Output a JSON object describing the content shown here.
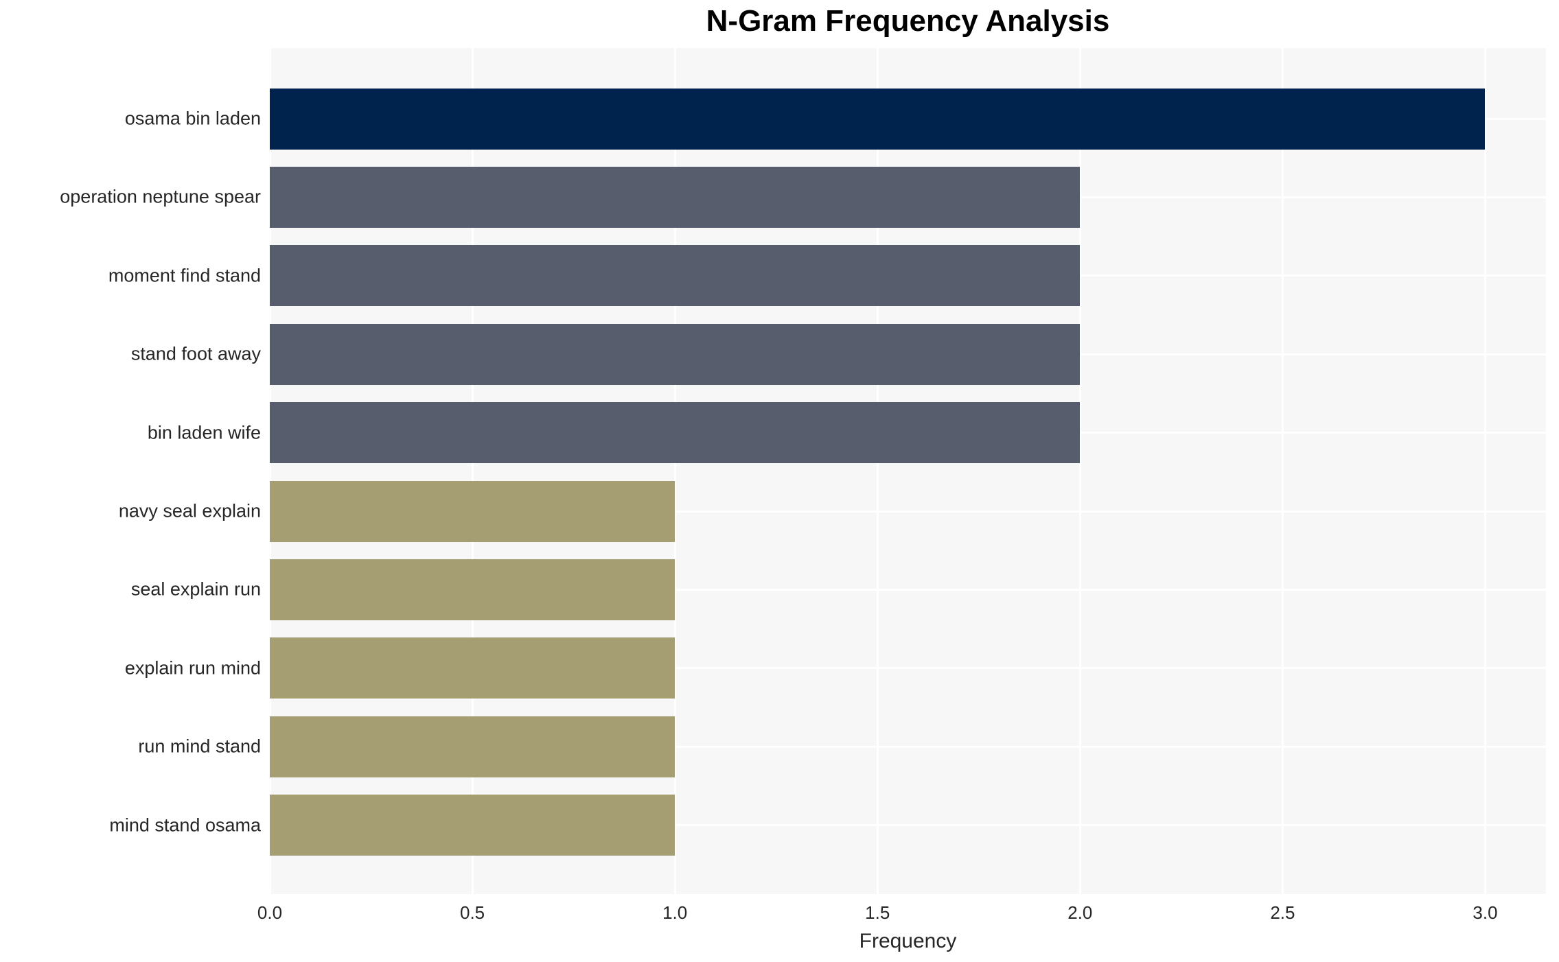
{
  "chart_data": {
    "type": "bar",
    "orientation": "horizontal",
    "title": "N-Gram Frequency Analysis",
    "xlabel": "Frequency",
    "ylabel": "",
    "categories": [
      "osama bin laden",
      "operation neptune spear",
      "moment find stand",
      "stand foot away",
      "bin laden wife",
      "navy seal explain",
      "seal explain run",
      "explain run mind",
      "run mind stand",
      "mind stand osama"
    ],
    "values": [
      3,
      2,
      2,
      2,
      2,
      1,
      1,
      1,
      1,
      1
    ],
    "bar_colors": [
      "#00234E",
      "#575D6C",
      "#575D6C",
      "#575D6C",
      "#575D6C",
      "#A49E72",
      "#A49E72",
      "#A49E72",
      "#A49E72",
      "#A49E72"
    ],
    "xlim": [
      0,
      3.15
    ],
    "xticks": [
      "0.0",
      "0.5",
      "1.0",
      "1.5",
      "2.0",
      "2.5",
      "3.0"
    ],
    "xtick_values": [
      0,
      0.5,
      1,
      1.5,
      2,
      2.5,
      3
    ],
    "grid": true,
    "legend": false
  },
  "style": {
    "figure_bg": "#FFFFFF",
    "plot_bg": "#F7F7F8",
    "grid_color": "#FFFFFF",
    "title_color": "#000000",
    "text_color": "#262626"
  }
}
